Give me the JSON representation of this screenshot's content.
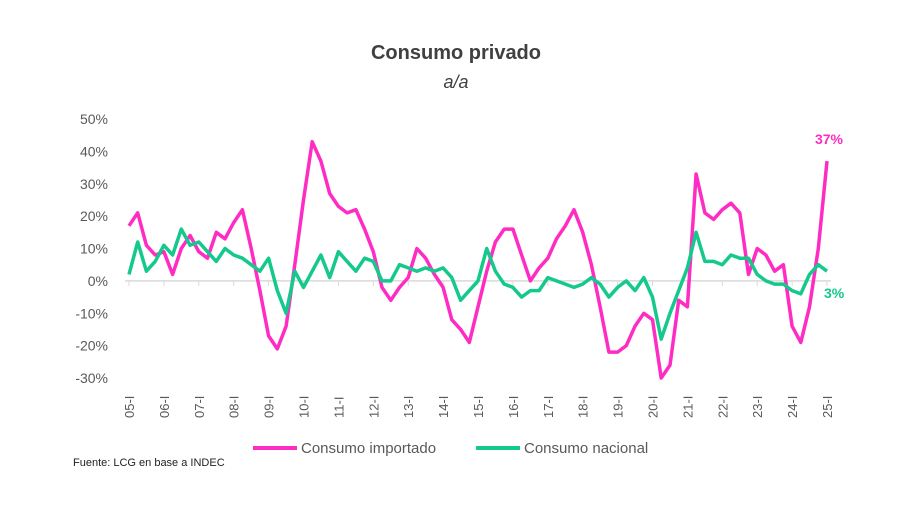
{
  "chart_data": {
    "type": "line",
    "title": "Consumo privado",
    "subtitle": "a/a",
    "ylim": [
      -30,
      50
    ],
    "yticks": [
      "50%",
      "40%",
      "30%",
      "20%",
      "10%",
      "0%",
      "-10%",
      "-20%",
      "-30%"
    ],
    "ytick_values": [
      50,
      40,
      30,
      20,
      10,
      0,
      -10,
      -20,
      -30
    ],
    "x_start": "05-I",
    "x_end": "25-I",
    "frequency": "quarterly",
    "xticks": [
      "05-I",
      "06-I",
      "07-I",
      "08-I",
      "09-I",
      "10-I",
      "11-I",
      "12-I",
      "13-I",
      "14-I",
      "15-I",
      "16-I",
      "17-I",
      "18-I",
      "19-I",
      "20-I",
      "21-I",
      "22-I",
      "23-I",
      "24-I",
      "25-I"
    ],
    "grid": false,
    "legend": "bottom",
    "series": [
      {
        "name": "Consumo importado",
        "color": "#ff2cc4",
        "end_label": "37%",
        "values": [
          17,
          21,
          11,
          8,
          9,
          2,
          10,
          14,
          9,
          7,
          15,
          13,
          18,
          22,
          10,
          -3,
          -17,
          -21,
          -14,
          5,
          25,
          43,
          37,
          27,
          23,
          21,
          22,
          16,
          9,
          -2,
          -6,
          -2,
          1,
          10,
          7,
          2,
          -2,
          -12,
          -15,
          -19,
          -8,
          3,
          12,
          16,
          16,
          8,
          0,
          4,
          7,
          13,
          17,
          22,
          15,
          5,
          -8,
          -22,
          -22,
          -20,
          -14,
          -10,
          -12,
          -30,
          -26,
          -6,
          -8,
          33,
          21,
          19,
          22,
          24,
          21,
          2,
          10,
          8,
          3,
          5,
          -14,
          -19,
          -8,
          10,
          37
        ]
      },
      {
        "name": "Consumo nacional",
        "color": "#14c98b",
        "end_label": "3%",
        "values": [
          2,
          12,
          3,
          6,
          11,
          8,
          16,
          11,
          12,
          9,
          6,
          10,
          8,
          7,
          5,
          3,
          7,
          -3,
          -10,
          3,
          -2,
          3,
          8,
          1,
          9,
          6,
          3,
          7,
          6,
          0,
          0,
          5,
          4,
          3,
          4,
          3,
          4,
          1,
          -6,
          -3,
          0,
          10,
          3,
          -1,
          -2,
          -5,
          -3,
          -3,
          1,
          0,
          -1,
          -2,
          -1,
          1,
          -1,
          -5,
          -2,
          0,
          -3,
          1,
          -5,
          -18,
          -10,
          -3,
          4,
          15,
          6,
          6,
          5,
          8,
          7,
          7,
          2,
          0,
          -1,
          -1,
          -3,
          -4,
          2,
          5,
          3
        ]
      }
    ]
  },
  "source": "Fuente: LCG en base a INDEC"
}
